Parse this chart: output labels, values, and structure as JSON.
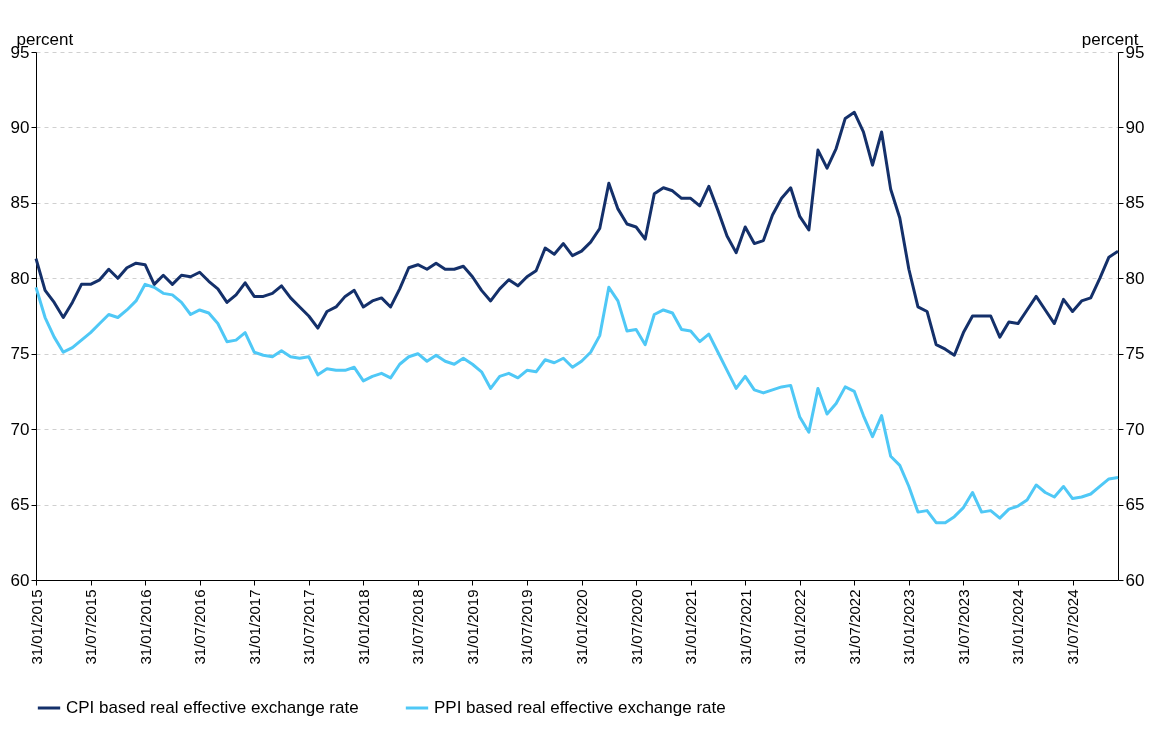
{
  "chart_data": {
    "type": "line",
    "ylabel": "percent",
    "y2label": "percent",
    "categories": [
      "31/01/2015",
      null,
      null,
      null,
      null,
      null,
      "31/07/2015",
      null,
      null,
      null,
      null,
      null,
      "31/01/2016",
      null,
      null,
      null,
      null,
      null,
      "31/07/2016",
      null,
      null,
      null,
      null,
      null,
      "31/01/2017",
      null,
      null,
      null,
      null,
      null,
      "31/07/2017",
      null,
      null,
      null,
      null,
      null,
      "31/01/2018",
      null,
      null,
      null,
      null,
      null,
      "31/07/2018",
      null,
      null,
      null,
      null,
      null,
      "31/01/2019",
      null,
      null,
      null,
      null,
      null,
      "31/07/2019",
      null,
      null,
      null,
      null,
      null,
      "31/01/2020",
      null,
      null,
      null,
      null,
      null,
      "31/07/2020",
      null,
      null,
      null,
      null,
      null,
      "31/01/2021",
      null,
      null,
      null,
      null,
      null,
      "31/07/2021",
      null,
      null,
      null,
      null,
      null,
      "31/01/2022",
      null,
      null,
      null,
      null,
      null,
      "31/07/2022",
      null,
      null,
      null,
      null,
      null,
      "31/01/2023",
      null,
      null,
      null,
      null,
      null,
      "31/07/2023",
      null,
      null,
      null,
      null,
      null,
      "31/01/2024",
      null,
      null,
      null,
      null,
      null,
      "31/07/2024",
      null,
      null,
      null,
      null,
      null
    ],
    "series": [
      {
        "name": "CPI based real effective exchange rate",
        "color": "#14306a",
        "values": [
          81.3,
          79.2,
          78.4,
          77.4,
          78.4,
          79.6,
          79.6,
          79.9,
          80.6,
          80.0,
          80.7,
          81.0,
          80.9,
          79.6,
          80.2,
          79.6,
          80.2,
          80.1,
          80.4,
          79.8,
          79.3,
          78.4,
          78.9,
          79.7,
          78.8,
          78.8,
          79.0,
          79.5,
          78.7,
          78.1,
          77.5,
          76.7,
          77.8,
          78.1,
          78.8,
          79.2,
          78.1,
          78.5,
          78.7,
          78.1,
          79.3,
          80.7,
          80.9,
          80.6,
          81.0,
          80.6,
          80.6,
          80.8,
          80.1,
          79.2,
          78.5,
          79.3,
          79.9,
          79.5,
          80.1,
          80.5,
          82.0,
          81.6,
          82.3,
          81.5,
          81.8,
          82.4,
          83.3,
          86.3,
          84.6,
          83.6,
          83.4,
          82.6,
          85.6,
          86.0,
          85.8,
          85.3,
          85.3,
          84.8,
          86.1,
          84.5,
          82.8,
          81.7,
          83.4,
          82.3,
          82.5,
          84.2,
          85.3,
          86.0,
          84.1,
          83.2,
          88.5,
          87.3,
          88.6,
          90.6,
          91.0,
          89.7,
          87.5,
          89.7,
          85.9,
          84.0,
          80.6,
          78.1,
          77.8,
          75.6,
          75.3,
          74.9,
          76.4,
          77.5,
          77.5,
          77.5,
          76.1,
          77.1,
          77.0,
          77.9,
          78.8,
          77.9,
          77.0,
          78.6,
          77.8,
          78.5,
          78.7,
          80.0,
          81.4,
          81.8
        ]
      },
      {
        "name": "PPI based real effective exchange rate",
        "color": "#4fc8f6",
        "values": [
          79.4,
          77.4,
          76.1,
          75.1,
          75.4,
          75.9,
          76.4,
          77.0,
          77.6,
          77.4,
          77.9,
          78.5,
          79.6,
          79.4,
          79.0,
          78.9,
          78.4,
          77.6,
          77.9,
          77.7,
          77.0,
          75.8,
          75.9,
          76.4,
          75.1,
          74.9,
          74.8,
          75.2,
          74.8,
          74.7,
          74.8,
          73.6,
          74.0,
          73.9,
          73.9,
          74.1,
          73.2,
          73.5,
          73.7,
          73.4,
          74.3,
          74.8,
          75.0,
          74.5,
          74.9,
          74.5,
          74.3,
          74.7,
          74.3,
          73.8,
          72.7,
          73.5,
          73.7,
          73.4,
          73.9,
          73.8,
          74.6,
          74.4,
          74.7,
          74.1,
          74.5,
          75.1,
          76.2,
          79.4,
          78.5,
          76.5,
          76.6,
          75.6,
          77.6,
          77.9,
          77.7,
          76.6,
          76.5,
          75.8,
          76.3,
          75.1,
          73.9,
          72.7,
          73.5,
          72.6,
          72.4,
          72.6,
          72.8,
          72.9,
          70.8,
          69.8,
          72.7,
          71.0,
          71.7,
          72.8,
          72.5,
          70.9,
          69.5,
          70.9,
          68.2,
          67.6,
          66.2,
          64.5,
          64.6,
          63.8,
          63.8,
          64.2,
          64.8,
          65.8,
          64.5,
          64.6,
          64.1,
          64.7,
          64.9,
          65.3,
          66.3,
          65.8,
          65.5,
          66.2,
          65.4,
          65.5,
          65.7,
          66.2,
          66.7,
          66.8
        ]
      }
    ],
    "ylim": [
      60,
      95
    ],
    "yticks": [
      60,
      65,
      70,
      75,
      80,
      85,
      90,
      95
    ],
    "y2lim": [
      60,
      95
    ],
    "y2ticks": [
      60,
      65,
      70,
      75,
      80,
      85,
      90,
      95
    ],
    "grid": "y",
    "legend": "bottom"
  }
}
